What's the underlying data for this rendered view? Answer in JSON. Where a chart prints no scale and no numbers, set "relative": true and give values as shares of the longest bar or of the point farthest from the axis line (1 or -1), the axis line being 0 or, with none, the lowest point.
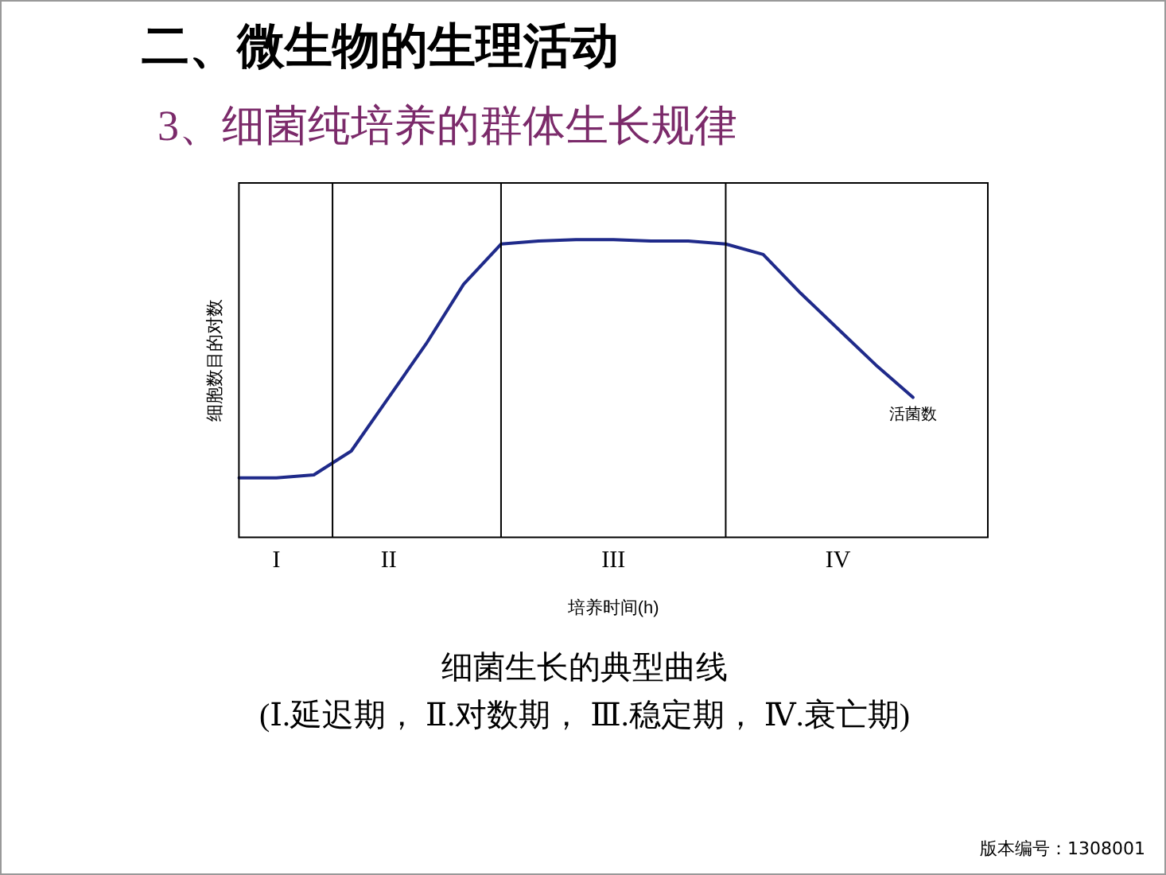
{
  "chart_data": {
    "type": "line",
    "title": "二、微生物的生理活动",
    "subtitle": "3、细菌纯培养的群体生长规律",
    "xlabel": "培养时间(h)",
    "ylabel": "细胞数目的对数",
    "relative": true,
    "grid": "x",
    "legend": false,
    "marker": "none",
    "line_style": "solid",
    "categories": [
      null,
      "I",
      null,
      null,
      "II",
      null,
      null,
      null,
      null,
      null,
      "III",
      null,
      null,
      null,
      null,
      null,
      "IV",
      null,
      null,
      null,
      null
    ],
    "series": [
      {
        "color": "#1f2a8a",
        "values": [
          0.2,
          0.2,
          0.21,
          0.29,
          0.47,
          0.65,
          0.85,
          0.985,
          0.995,
          1,
          1,
          0.995,
          0.995,
          0.985,
          0.95,
          0.82,
          0.7,
          0.58,
          0.47,
          null,
          null
        ]
      }
    ],
    "annotations": [
      {
        "text": "活菌数",
        "y": 0.47
      },
      "细菌生长的典型曲线",
      "(Ⅰ.延迟期， Ⅱ.对数期， Ⅲ.稳定期， Ⅳ.衰亡期)",
      "版本编号：1308001"
    ]
  }
}
